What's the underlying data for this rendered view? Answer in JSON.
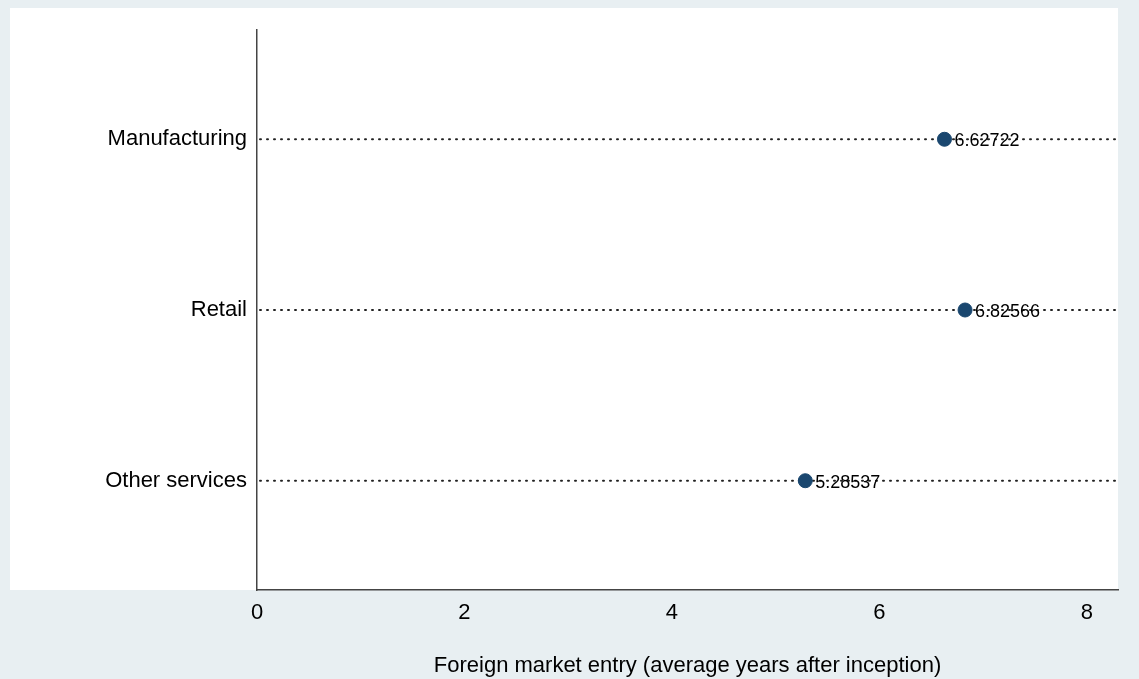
{
  "chart_data": {
    "type": "scatter",
    "orientation": "horizontal",
    "xlabel": "Foreign market entry (average years after inception)",
    "categories": [
      "Manufacturing",
      "Retail",
      "Other services"
    ],
    "values": [
      6.62722,
      6.82566,
      5.28537
    ],
    "color": "#1a476f",
    "xlim": [
      0,
      8.3
    ],
    "xticks": [
      0,
      2,
      4,
      6,
      8
    ],
    "grid": "y",
    "marker": "circle",
    "data_labels": true,
    "legend": false
  }
}
